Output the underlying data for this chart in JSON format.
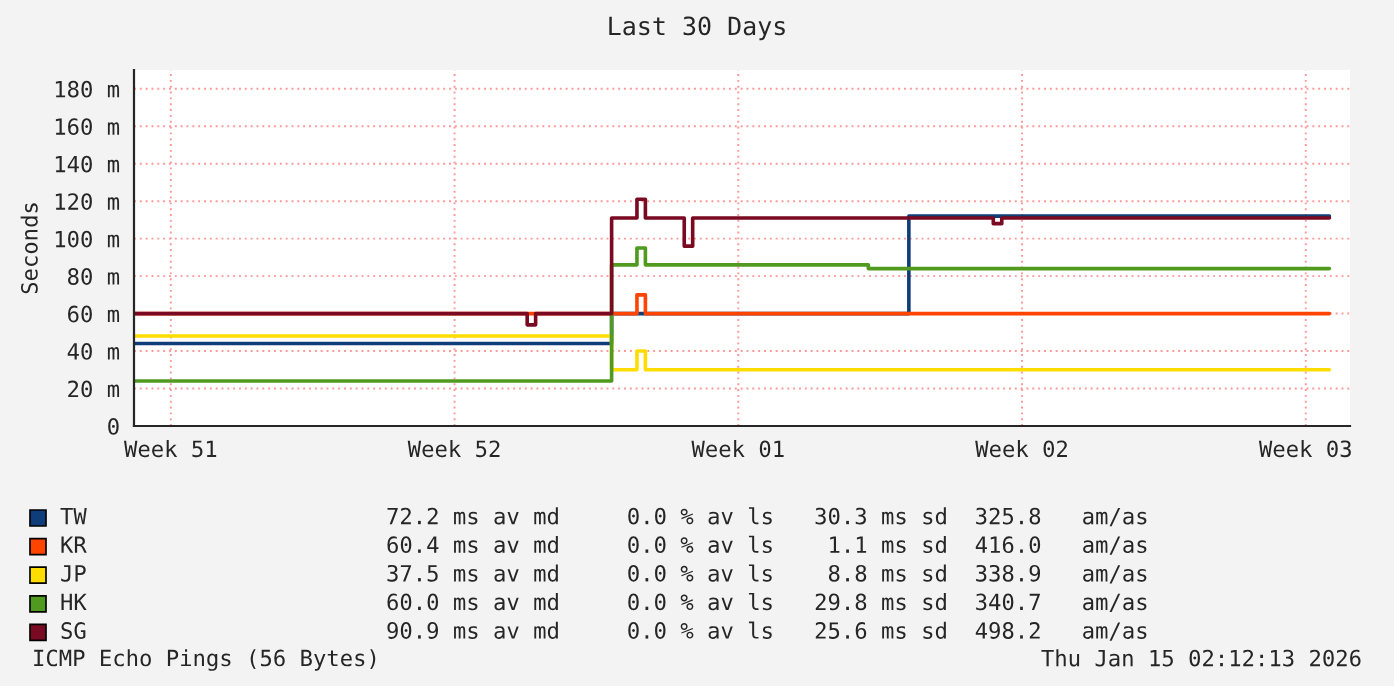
{
  "chart_data": {
    "type": "step",
    "title": "Last 30 Days",
    "ylabel": "Seconds",
    "xlim": [
      "2025-12-16T02:12",
      "2026-01-15T02:12"
    ],
    "ylim": [
      0,
      190
    ],
    "xticks": [
      {
        "value": "2025-12-17",
        "label": "Week 51"
      },
      {
        "value": "2025-12-24",
        "label": "Week 52"
      },
      {
        "value": "2025-12-31",
        "label": "Week 01"
      },
      {
        "value": "2026-01-07",
        "label": "Week 02"
      },
      {
        "value": "2026-01-14",
        "label": "Week 03"
      }
    ],
    "yticks": [
      0,
      {
        "value": 20,
        "label": "20 m"
      },
      {
        "value": 40,
        "label": "40 m"
      },
      {
        "value": 60,
        "label": "60 m"
      },
      {
        "value": 80,
        "label": "80 m"
      },
      {
        "value": 100,
        "label": "100 m"
      },
      {
        "value": 120,
        "label": "120 m"
      },
      {
        "value": 140,
        "label": "140 m"
      },
      {
        "value": 160,
        "label": "160 m"
      },
      {
        "value": 180,
        "label": "180 m"
      }
    ],
    "grid": true,
    "legend": "bottom",
    "series": [
      {
        "name": "TW",
        "color": "#0f3d7a",
        "x": [
          "2025-12-16T02:12",
          "2025-12-27T21:00",
          "2026-01-04T05:00",
          "2026-01-06T09:00",
          "2026-01-14T14:00"
        ],
        "values": [
          44,
          60,
          112,
          112,
          112
        ]
      },
      {
        "name": "KR",
        "color": "#ff4400",
        "x": [
          "2025-12-16T02:12",
          "2025-12-27T21:00",
          "2025-12-28T12:00",
          "2025-12-28T17:00",
          "2026-01-14T14:00"
        ],
        "values": [
          60,
          60,
          70,
          60,
          60
        ]
      },
      {
        "name": "JP",
        "color": "#ffdd00",
        "x": [
          "2025-12-16T02:12",
          "2025-12-27T21:00",
          "2025-12-28T12:00",
          "2025-12-28T17:00",
          "2026-01-14T14:00"
        ],
        "values": [
          48,
          30,
          40,
          30,
          30
        ]
      },
      {
        "name": "HK",
        "color": "#4f9a1f",
        "x": [
          "2025-12-16T02:12",
          "2025-12-27T21:00",
          "2025-12-28T12:00",
          "2025-12-28T17:00",
          "2026-01-03T05:00",
          "2026-01-14T14:00"
        ],
        "values": [
          24,
          86,
          95,
          86,
          84,
          84
        ]
      },
      {
        "name": "SG",
        "color": "#7a0a22",
        "x": [
          "2025-12-16T02:12",
          "2025-12-25T19:00",
          "2025-12-26T00:00",
          "2025-12-27T21:00",
          "2025-12-28T12:00",
          "2025-12-28T17:00",
          "2025-12-29T16:00",
          "2025-12-29T21:00",
          "2026-01-06T07:00",
          "2026-01-06T12:00",
          "2026-01-14T14:00"
        ],
        "values": [
          60,
          54,
          60,
          111,
          121,
          111,
          96,
          111,
          108,
          111,
          111
        ]
      }
    ],
    "annotations": [
      "72.2 ms av md     0.0 % av ls   30.3 ms sd  325.8   am/as",
      "60.4 ms av md     0.0 % av ls    1.1 ms sd  416.0   am/as",
      "37.5 ms av md     0.0 % av ls    8.8 ms sd  338.9   am/as",
      "60.0 ms av md     0.0 % av ls   29.8 ms sd  340.7   am/as",
      "90.9 ms av md     0.0 % av ls   25.6 ms sd  498.2   am/as",
      "ICMP Echo Pings (56 Bytes)",
      "Thu Jan 15 02:12:13 2026"
    ]
  }
}
